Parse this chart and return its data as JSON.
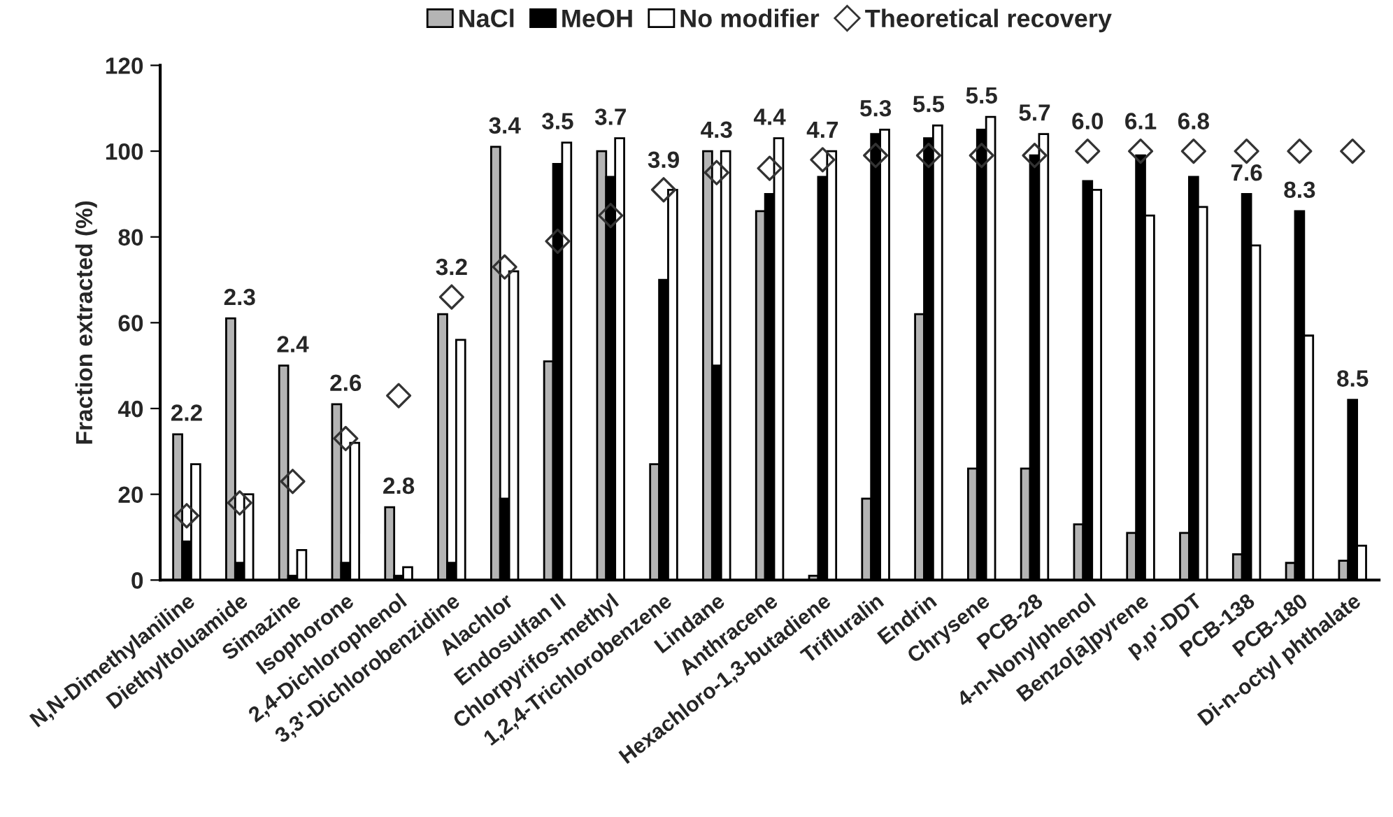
{
  "chart_data": {
    "type": "bar",
    "ylabel": "Fraction extracted (%)",
    "categories": [
      "N,N-Dimethylaniline",
      "Diethyltoluamide",
      "Simazine",
      "Isophorone",
      "2,4-Dichlorophenol",
      "3,3'-Dichlorobenzidine",
      "Alachlor",
      "Endosulfan II",
      "Chlorpyrifos-methyl",
      "1,2,4-Trichlorobenzene",
      "Lindane",
      "Anthracene",
      "Hexachloro-1,3-butadiene",
      "Trifluralin",
      "Endrin",
      "Chrysene",
      "PCB-28",
      "4-n-Nonylphenol",
      "Benzo[a]pyrene",
      "p,p'-DDT",
      "PCB-138",
      "PCB-180",
      "Di-n-octyl phthalate"
    ],
    "series": [
      {
        "name": "NaCl",
        "color": "#b4b4b4",
        "values": [
          34,
          61,
          50,
          41,
          17,
          62,
          101,
          51,
          100,
          27,
          100,
          86,
          1,
          19,
          62,
          26,
          26,
          13,
          11,
          11,
          6,
          4,
          4.5
        ]
      },
      {
        "name": "MeOH",
        "color": "#000000",
        "values": [
          9,
          4,
          1,
          4,
          1,
          4,
          19,
          97,
          94,
          70,
          50,
          90,
          94,
          104,
          103,
          105,
          99,
          93,
          99,
          94,
          90,
          86,
          42
        ]
      },
      {
        "name": "No modifier",
        "color": "#ffffff",
        "values": [
          27,
          20,
          7,
          32,
          3,
          56,
          72,
          102,
          103,
          91,
          100,
          103,
          100,
          105,
          106,
          108,
          104,
          91,
          85,
          87,
          78,
          57,
          8
        ]
      },
      {
        "name": "Theoretical recovery",
        "type": "scatter",
        "marker": "diamond",
        "color": "#333333",
        "values": [
          15,
          18,
          23,
          33,
          43,
          66,
          73,
          79,
          85,
          91,
          95,
          96,
          98,
          99,
          99,
          99,
          99,
          100,
          100,
          100,
          100,
          100,
          100
        ]
      }
    ],
    "annotations": [
      "2.2",
      "2.3",
      "2.4",
      "2.6",
      "2.8",
      "3.2",
      "3.4",
      "3.5",
      "3.7",
      "3.9",
      "4.3",
      "4.4",
      "4.7",
      "5.3",
      "5.5",
      "5.5",
      "5.7",
      "6.0",
      "6.1",
      "6.8",
      "7.6",
      "8.3",
      "8.5"
    ],
    "ylim": [
      0,
      120
    ],
    "yticks": [
      0,
      20,
      40,
      60,
      80,
      100,
      120
    ],
    "grid": false,
    "legend": "top"
  }
}
